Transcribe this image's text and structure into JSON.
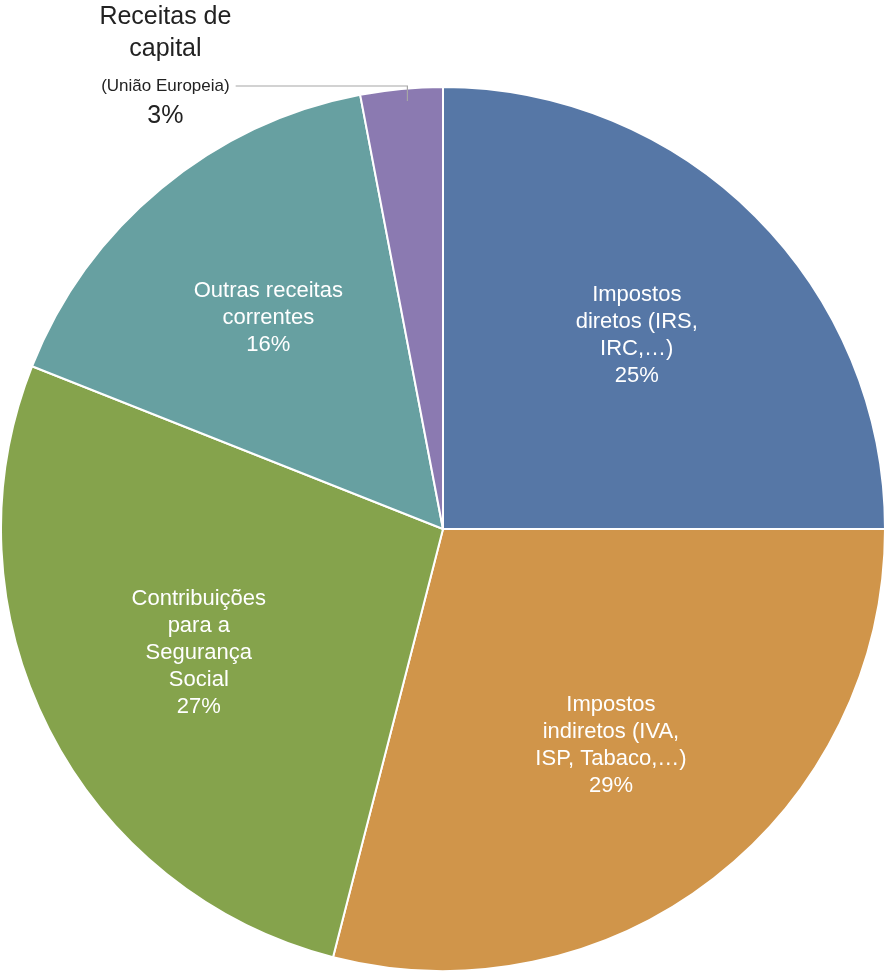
{
  "chart_data": {
    "type": "pie",
    "categories": [
      "Impostos diretos (IRS, IRC,…)",
      "Impostos indiretos (IVA, ISP, Tabaco,…)",
      "Contribuições para a Segurança Social",
      "Outras receitas correntes",
      "Receitas de capital (União Europeia)"
    ],
    "values": [
      25,
      29,
      27,
      16,
      3
    ],
    "value_labels": [
      "25%",
      "29%",
      "27%",
      "16%",
      "3%"
    ],
    "colors": [
      "#5677a6",
      "#d0954a",
      "#85a34c",
      "#67a0a1",
      "#8b7ab1"
    ],
    "data_labels": true
  }
}
